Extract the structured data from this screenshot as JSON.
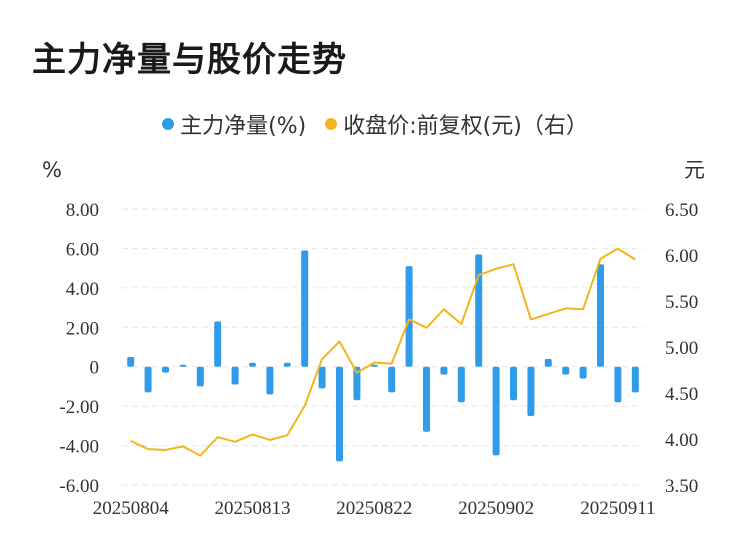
{
  "title": "主力净量与股价走势",
  "legend": {
    "series1": {
      "label": "主力净量(%)",
      "color": "#2f9bea"
    },
    "series2": {
      "label": "收盘价:前复权(元)（右）",
      "color": "#f2b51c"
    }
  },
  "chart_data": {
    "type": "bar+line",
    "left_unit": "%",
    "right_unit": "元",
    "left_axis": {
      "min": -6,
      "max": 8,
      "ticks": [
        "8.00",
        "6.00",
        "4.00",
        "2.00",
        "0",
        "-2.00",
        "-4.00",
        "-6.00"
      ],
      "tick_values": [
        8,
        6,
        4,
        2,
        0,
        -2,
        -4,
        -6
      ]
    },
    "right_axis": {
      "min": 3.5,
      "max": 6.5,
      "ticks": [
        "6.50",
        "6.00",
        "5.50",
        "5.00",
        "4.50",
        "4.00",
        "3.50"
      ],
      "tick_values": [
        6.5,
        6.0,
        5.5,
        5.0,
        4.5,
        4.0,
        3.5
      ]
    },
    "x_labels": [
      {
        "index": 0,
        "label": "20250804"
      },
      {
        "index": 7,
        "label": "20250813"
      },
      {
        "index": 14,
        "label": "20250822"
      },
      {
        "index": 21,
        "label": "20250902"
      },
      {
        "index": 28,
        "label": "20250911"
      }
    ],
    "series": [
      {
        "name": "主力净量(%)",
        "type": "bar",
        "values": [
          0.5,
          -1.3,
          -0.3,
          0.1,
          -1.0,
          2.3,
          -0.9,
          0.2,
          -1.4,
          0.2,
          5.9,
          -1.1,
          -4.8,
          -1.7,
          0.1,
          -1.3,
          5.1,
          -3.3,
          -0.4,
          -1.8,
          5.7,
          -4.5,
          -1.7,
          -2.5,
          0.4,
          -0.4,
          -0.6,
          5.2,
          -1.8,
          -1.3
        ]
      },
      {
        "name": "收盘价:前复权(元)",
        "type": "line",
        "values": [
          3.98,
          3.89,
          3.88,
          3.92,
          3.82,
          4.02,
          3.97,
          4.05,
          3.99,
          4.04,
          4.36,
          4.87,
          5.06,
          4.72,
          4.83,
          4.82,
          5.3,
          5.21,
          5.41,
          5.25,
          5.78,
          5.85,
          5.9,
          5.3,
          5.36,
          5.42,
          5.41,
          5.96,
          6.07,
          5.95
        ]
      }
    ]
  }
}
